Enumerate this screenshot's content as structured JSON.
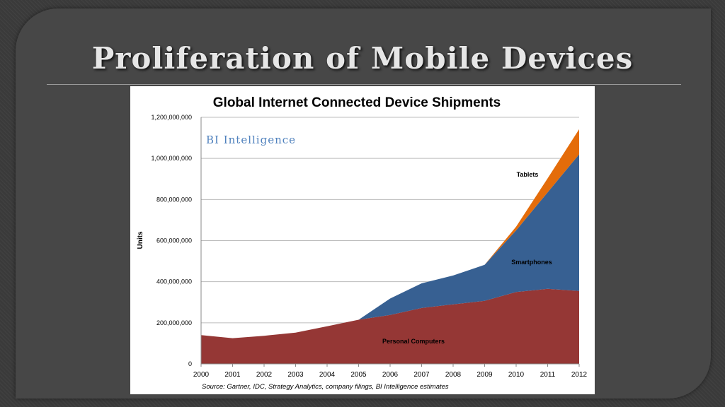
{
  "slide": {
    "title": "Proliferation of Mobile Devices"
  },
  "colors": {
    "personal_computers": "#953735",
    "smartphones": "#376092",
    "tablets": "#e46c0a",
    "watermark": "#4f81bd"
  },
  "chart_data": {
    "type": "area",
    "stacked": true,
    "title": "Global Internet Connected Device Shipments",
    "watermark": "BI Intelligence",
    "ylabel": "Units",
    "xlabel": "",
    "source": "Source: Gartner, IDC, Strategy Analytics, company filings, BI Intelligence estimates",
    "x": [
      "2000",
      "2001",
      "2002",
      "2003",
      "2004",
      "2005",
      "2006",
      "2007",
      "2008",
      "2009",
      "2010",
      "2011",
      "2012"
    ],
    "ylim": [
      0,
      1200000000
    ],
    "yticks": [
      0,
      200000000,
      400000000,
      600000000,
      800000000,
      1000000000,
      1200000000
    ],
    "ytick_labels": [
      "0",
      "200,000,000",
      "400,000,000",
      "600,000,000",
      "800,000,000",
      "1,000,000,000",
      "1,200,000,000"
    ],
    "grid": true,
    "series": [
      {
        "name": "Personal Computers",
        "key": "pc",
        "color": "#953735",
        "values": [
          140000000,
          125000000,
          137000000,
          152000000,
          183000000,
          215000000,
          238000000,
          272000000,
          290000000,
          307000000,
          350000000,
          365000000,
          355000000
        ]
      },
      {
        "name": "Smartphones",
        "key": "phone",
        "color": "#376092",
        "values": [
          0,
          0,
          0,
          0,
          0,
          0,
          80000000,
          120000000,
          140000000,
          175000000,
          300000000,
          470000000,
          665000000
        ]
      },
      {
        "name": "Tablets",
        "key": "tablet",
        "color": "#e46c0a",
        "values": [
          0,
          0,
          0,
          0,
          0,
          0,
          0,
          0,
          0,
          0,
          18000000,
          68000000,
          122000000
        ]
      }
    ],
    "annotations": [
      {
        "text": "Tablets",
        "series": "Tablets"
      },
      {
        "text": "Smartphones",
        "series": "Smartphones"
      },
      {
        "text": "Personal Computers",
        "series": "Personal Computers"
      }
    ]
  }
}
